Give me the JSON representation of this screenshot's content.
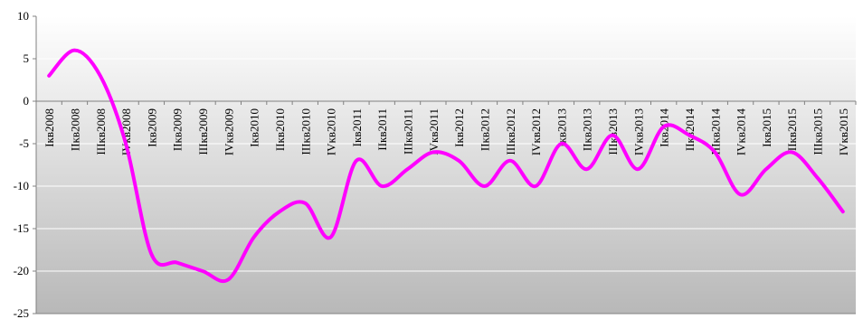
{
  "chart_data": {
    "type": "line",
    "title": "",
    "xlabel": "",
    "ylabel": "",
    "ylim": [
      -25,
      10
    ],
    "yticks": [
      10,
      5,
      0,
      -5,
      -10,
      -15,
      -20,
      -25
    ],
    "grid": true,
    "legend": "none",
    "colors": {
      "line": "#FF00FF",
      "plot_bg_top": "#FFFFFF",
      "plot_bg_bottom": "#B8B8B8",
      "grid": "#FFFFFF",
      "axis": "#808080"
    },
    "categories": [
      "Iкв2008",
      "IIкв2008",
      "IIIкв2008",
      "IVкв2008",
      "Iкв2009",
      "IIкв2009",
      "IIIкв2009",
      "IVкв2009",
      "Iкв2010",
      "IIкв2010",
      "IIIкв2010",
      "IVкв2010",
      "Iкв2011",
      "IIкв2011",
      "IIIкв2011",
      "IVкв2011",
      "Iкв2012",
      "IIкв2012",
      "IIIкв2012",
      "IVкв2012",
      "Iкв2013",
      "IIкв2013",
      "IIIкв2013",
      "IVкв2013",
      "Iкв2014",
      "IIкв2014",
      "IIIкв2014",
      "IVкв2014",
      "Iкв2015",
      "IIкв2015",
      "IIIкв2015",
      "IVкв2015"
    ],
    "series": [
      {
        "values": [
          3,
          6,
          3,
          -5,
          -18,
          -19,
          -20,
          -21,
          -16,
          -13,
          -12,
          -16,
          -7,
          -10,
          -8,
          -6,
          -7,
          -10,
          -7,
          -10,
          -5,
          -8,
          -4,
          -8,
          -3,
          -4,
          -6,
          -11,
          -8,
          -6,
          -9,
          -13
        ]
      }
    ]
  }
}
